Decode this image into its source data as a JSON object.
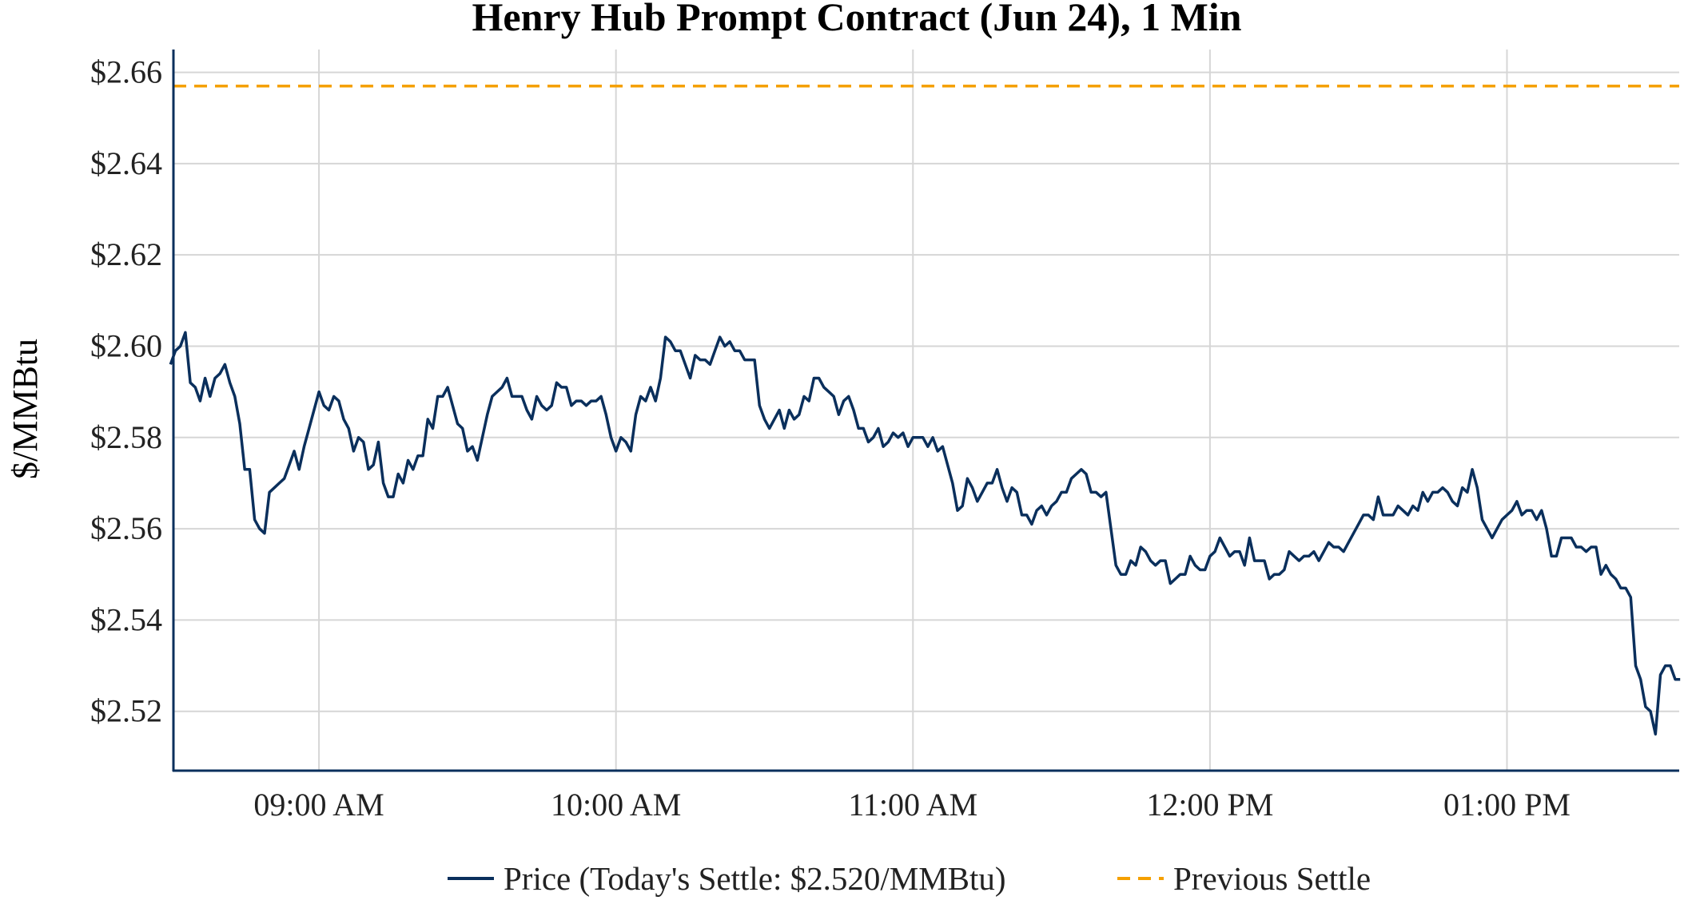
{
  "chart_data": {
    "type": "line",
    "title": "Henry Hub Prompt Contract (Jun 24), 1 Min",
    "xlabel": "",
    "ylabel": "$/MMBtu",
    "xlim": [
      "08:30",
      "13:35"
    ],
    "ylim": [
      2.507,
      2.665
    ],
    "grid": true,
    "legend_placement": "bottom-center",
    "xticks": [
      {
        "value": "09:00",
        "label": "09:00 AM"
      },
      {
        "value": "10:00",
        "label": "10:00 AM"
      },
      {
        "value": "11:00",
        "label": "11:00 AM"
      },
      {
        "value": "12:00",
        "label": "12:00 PM"
      },
      {
        "value": "13:00",
        "label": "01:00 PM"
      }
    ],
    "yticks": [
      {
        "value": 2.52,
        "label": "$2.52"
      },
      {
        "value": 2.54,
        "label": "$2.54"
      },
      {
        "value": 2.56,
        "label": "$2.56"
      },
      {
        "value": 2.58,
        "label": "$2.58"
      },
      {
        "value": 2.6,
        "label": "$2.60"
      },
      {
        "value": 2.62,
        "label": "$2.62"
      },
      {
        "value": 2.64,
        "label": "$2.64"
      },
      {
        "value": 2.66,
        "label": "$2.66"
      }
    ],
    "series": [
      {
        "name": "Price (Today's Settle: $2.520/MMBtu)",
        "color": "#0a2f5c",
        "style": "solid",
        "x_start": "08:30",
        "interval_minutes": 1,
        "values": [
          2.596,
          2.599,
          2.6,
          2.603,
          2.592,
          2.591,
          2.588,
          2.593,
          2.589,
          2.593,
          2.594,
          2.596,
          2.592,
          2.589,
          2.583,
          2.573,
          2.573,
          2.562,
          2.56,
          2.559,
          2.568,
          2.569,
          2.57,
          2.571,
          2.574,
          2.577,
          2.573,
          2.578,
          2.582,
          2.586,
          2.59,
          2.587,
          2.586,
          2.589,
          2.588,
          2.584,
          2.582,
          2.577,
          2.58,
          2.579,
          2.573,
          2.574,
          2.579,
          2.57,
          2.567,
          2.567,
          2.572,
          2.57,
          2.575,
          2.573,
          2.576,
          2.576,
          2.584,
          2.582,
          2.589,
          2.589,
          2.591,
          2.587,
          2.583,
          2.582,
          2.577,
          2.578,
          2.575,
          2.58,
          2.585,
          2.589,
          2.59,
          2.591,
          2.593,
          2.589,
          2.589,
          2.589,
          2.586,
          2.584,
          2.589,
          2.587,
          2.586,
          2.587,
          2.592,
          2.591,
          2.591,
          2.587,
          2.588,
          2.588,
          2.587,
          2.588,
          2.588,
          2.589,
          2.585,
          2.58,
          2.577,
          2.58,
          2.579,
          2.577,
          2.585,
          2.589,
          2.588,
          2.591,
          2.588,
          2.593,
          2.602,
          2.601,
          2.599,
          2.599,
          2.596,
          2.593,
          2.598,
          2.597,
          2.597,
          2.596,
          2.599,
          2.602,
          2.6,
          2.601,
          2.599,
          2.599,
          2.597,
          2.597,
          2.597,
          2.587,
          2.584,
          2.582,
          2.584,
          2.586,
          2.582,
          2.586,
          2.584,
          2.585,
          2.589,
          2.588,
          2.593,
          2.593,
          2.591,
          2.59,
          2.589,
          2.585,
          2.588,
          2.589,
          2.586,
          2.582,
          2.582,
          2.579,
          2.58,
          2.582,
          2.578,
          2.579,
          2.581,
          2.58,
          2.581,
          2.578,
          2.58,
          2.58,
          2.58,
          2.578,
          2.58,
          2.577,
          2.578,
          2.574,
          2.57,
          2.564,
          2.565,
          2.571,
          2.569,
          2.566,
          2.568,
          2.57,
          2.57,
          2.573,
          2.569,
          2.566,
          2.569,
          2.568,
          2.563,
          2.563,
          2.561,
          2.564,
          2.565,
          2.563,
          2.565,
          2.566,
          2.568,
          2.568,
          2.571,
          2.572,
          2.573,
          2.572,
          2.568,
          2.568,
          2.567,
          2.568,
          2.56,
          2.552,
          2.55,
          2.55,
          2.553,
          2.552,
          2.556,
          2.555,
          2.553,
          2.552,
          2.553,
          2.553,
          2.548,
          2.549,
          2.55,
          2.55,
          2.554,
          2.552,
          2.551,
          2.551,
          2.554,
          2.555,
          2.558,
          2.556,
          2.554,
          2.555,
          2.555,
          2.552,
          2.558,
          2.553,
          2.553,
          2.553,
          2.549,
          2.55,
          2.55,
          2.551,
          2.555,
          2.554,
          2.553,
          2.554,
          2.554,
          2.555,
          2.553,
          2.555,
          2.557,
          2.556,
          2.556,
          2.555,
          2.557,
          2.559,
          2.561,
          2.563,
          2.563,
          2.562,
          2.567,
          2.563,
          2.563,
          2.563,
          2.565,
          2.564,
          2.563,
          2.565,
          2.564,
          2.568,
          2.566,
          2.568,
          2.568,
          2.569,
          2.568,
          2.566,
          2.565,
          2.569,
          2.568,
          2.573,
          2.569,
          2.562,
          2.56,
          2.558,
          2.56,
          2.562,
          2.563,
          2.564,
          2.566,
          2.563,
          2.564,
          2.564,
          2.562,
          2.564,
          2.56,
          2.554,
          2.554,
          2.558,
          2.558,
          2.558,
          2.556,
          2.556,
          2.555,
          2.556,
          2.556,
          2.55,
          2.552,
          2.55,
          2.549,
          2.547,
          2.547,
          2.545,
          2.53,
          2.527,
          2.521,
          2.52,
          2.515,
          2.528,
          2.53,
          2.53,
          2.527,
          2.527
        ]
      },
      {
        "name": "Previous Settle",
        "color": "#f5a000",
        "style": "dashed",
        "value": 2.657
      }
    ]
  }
}
